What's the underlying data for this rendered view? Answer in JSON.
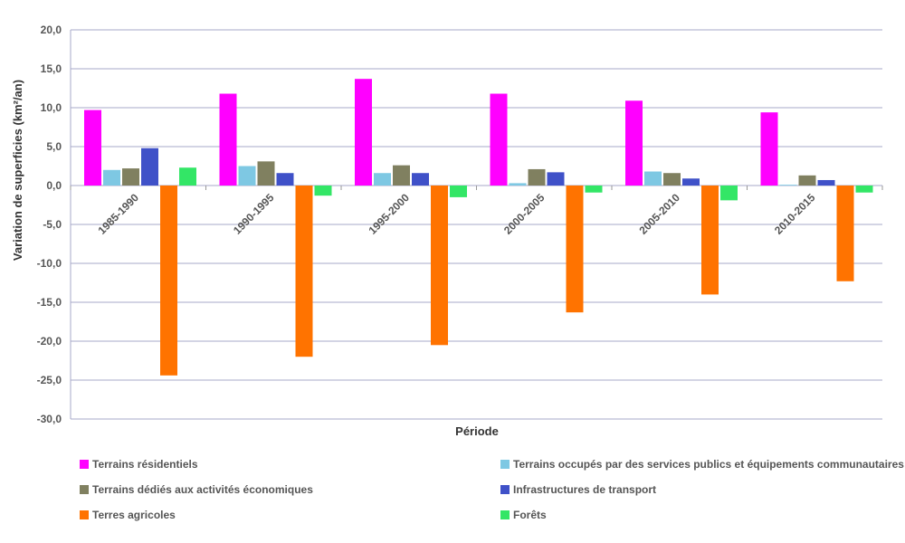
{
  "chart_data": {
    "type": "bar",
    "categories": [
      "1985-1990",
      "1990-1995",
      "1995-2000",
      "2000-2005",
      "2005-2010",
      "2010-2015"
    ],
    "series": [
      {
        "name": "Terrains résidentiels",
        "color": "#ff00ff",
        "values": [
          9.7,
          11.8,
          13.7,
          11.8,
          10.9,
          9.4
        ]
      },
      {
        "name": "Terrains occupés par des services publics et équipements communautaires",
        "color": "#7ec8e3",
        "values": [
          2.0,
          2.5,
          1.6,
          0.3,
          1.8,
          0.1
        ]
      },
      {
        "name": "Terrains dédiés aux activités économiques",
        "color": "#808060",
        "values": [
          2.2,
          3.1,
          2.6,
          2.1,
          1.6,
          1.3
        ]
      },
      {
        "name": "Infrastructures de transport",
        "color": "#3f51c8",
        "values": [
          4.8,
          1.6,
          1.6,
          1.7,
          0.9,
          0.7
        ]
      },
      {
        "name": "Terres agricoles",
        "color": "#ff7300",
        "values": [
          -24.4,
          -22.0,
          -20.5,
          -16.3,
          -14.0,
          -12.3
        ]
      },
      {
        "name": "Forêts",
        "color": "#33e666",
        "values": [
          2.3,
          -1.3,
          -1.5,
          -0.9,
          -1.9,
          -0.9
        ]
      }
    ],
    "yticks": [
      "20,0",
      "15,0",
      "10,0",
      "5,0",
      "0,0",
      "-5,0",
      "-10,0",
      "-15,0",
      "-20,0",
      "-25,0",
      "-30,0"
    ],
    "ylim": [
      -30,
      20
    ],
    "ytick_step": 5,
    "xlabel": "Période",
    "ylabel": "Variation de superficies (km²/an)",
    "grid": true,
    "legend_position": "bottom",
    "gridline_color": "#a7a9c8"
  }
}
